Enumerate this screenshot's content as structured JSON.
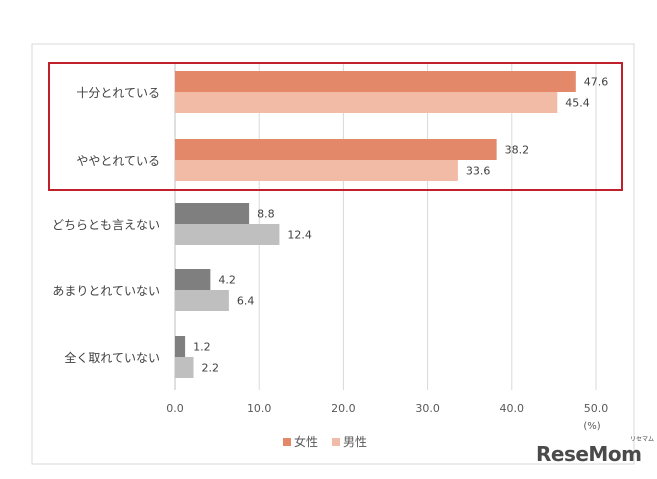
{
  "chart_data": {
    "type": "bar",
    "orientation": "horizontal",
    "categories": [
      "十分とれている",
      "ややとれている",
      "どちらとも言えない",
      "あまりとれていない",
      "全く取れていない"
    ],
    "series": [
      {
        "name": "女性",
        "values": [
          47.6,
          38.2,
          8.8,
          4.2,
          1.2
        ],
        "color": "#e3896a",
        "neutral_color": "#7f7f7f"
      },
      {
        "name": "男性",
        "values": [
          45.4,
          33.6,
          12.4,
          6.4,
          2.2
        ],
        "color": "#f2bba6",
        "neutral_color": "#bfbfbf"
      }
    ],
    "value_labels": [
      [
        "47.6",
        "38.2",
        "8.8",
        "4.2",
        "1.2"
      ],
      [
        "45.4",
        "33.6",
        "12.4",
        "6.4",
        "2.2"
      ]
    ],
    "highlighted_categories": [
      "十分とれている",
      "ややとれている"
    ],
    "highlight_color": "#c0202a",
    "xlim": [
      0,
      50
    ],
    "xticks": [
      "0.0",
      "10.0",
      "20.0",
      "30.0",
      "40.0",
      "50.0"
    ],
    "x_unit": "(%)",
    "gridlines": true,
    "legend_position": "bottom",
    "legend_labels": [
      "女性",
      "男性"
    ]
  },
  "watermark": {
    "main": "ReseMom",
    "sub": "リセマム"
  }
}
